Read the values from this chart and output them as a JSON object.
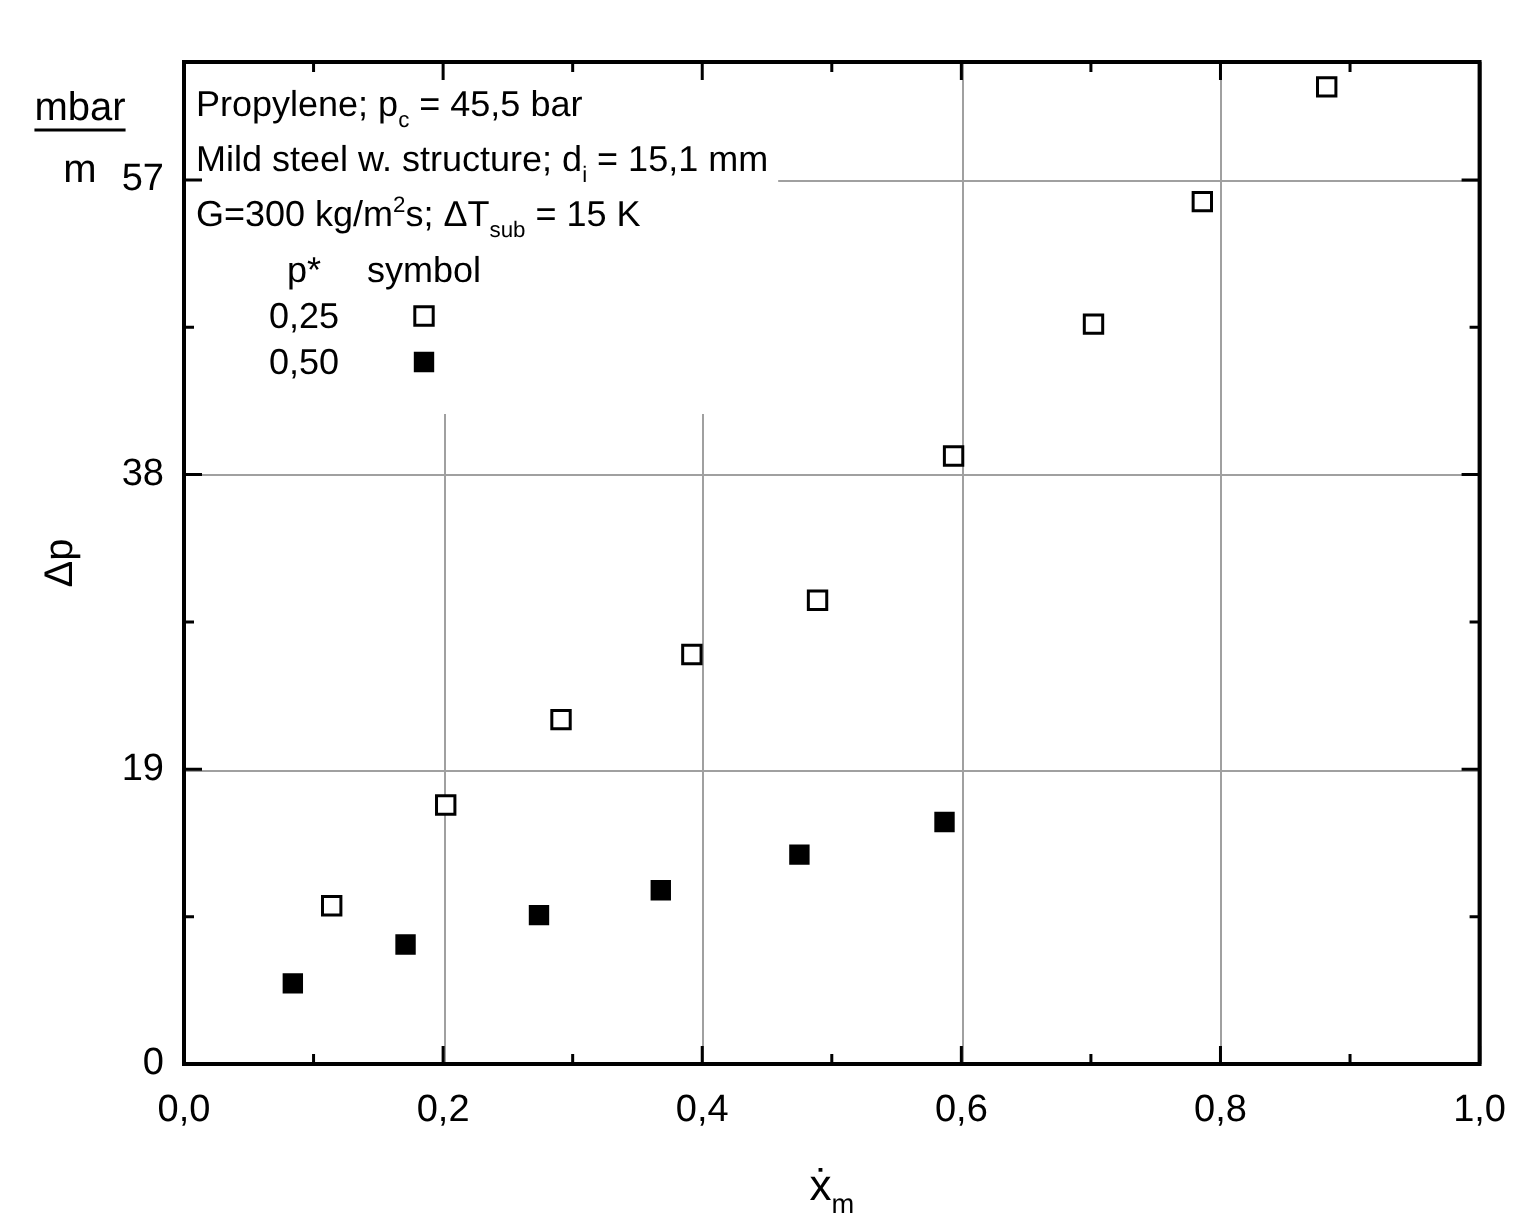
{
  "chart_data": {
    "type": "scatter",
    "xlabel": "ẋ$_{m}$",
    "ylabel": "Δp",
    "xlim": [
      0,
      1
    ],
    "ylim": [
      0,
      64.6
    ],
    "xticks": [
      {
        "value": 0,
        "label": "0,0"
      },
      {
        "value": 0.1,
        "label": null
      },
      {
        "value": 0.2,
        "label": "0,2"
      },
      {
        "value": 0.3,
        "label": null
      },
      {
        "value": 0.4,
        "label": "0,4"
      },
      {
        "value": 0.5,
        "label": null
      },
      {
        "value": 0.6,
        "label": "0,6"
      },
      {
        "value": 0.7,
        "label": null
      },
      {
        "value": 0.8,
        "label": "0,8"
      },
      {
        "value": 0.9,
        "label": null
      },
      {
        "value": 1,
        "label": "1,0"
      }
    ],
    "yticks": [
      0,
      {
        "value": 9.5,
        "label": null
      },
      19,
      {
        "value": 28.5,
        "label": null
      },
      38,
      {
        "value": 47.5,
        "label": null
      },
      57
    ],
    "grid": true,
    "legend": "top left",
    "legend_title": "p*",
    "marker": "square",
    "series": [
      {
        "name": "0,25",
        "color": "#000000",
        "marker": "square-open",
        "x": [
          0.114,
          0.202,
          0.291,
          0.392,
          0.489,
          0.594,
          0.702,
          0.786,
          0.882
        ],
        "values": [
          10.2,
          16.7,
          22.2,
          26.4,
          29.9,
          39.2,
          47.7,
          55.6,
          63.0
        ]
      },
      {
        "name": "0,50",
        "color": "#000000",
        "x": [
          0.084,
          0.171,
          0.274,
          0.368,
          0.475,
          0.587
        ],
        "values": [
          5.2,
          7.7,
          9.6,
          11.2,
          13.5,
          15.6
        ]
      }
    ],
    "annotations": [
      "Propylene; p$_{c}$ = 45,5 bar",
      "Mild steel w. structure; d$_{i}$ = 15,1 mm",
      "G=300 kg/m$^{2}$s; ΔT$_{sub}$ = 15 K",
      "symbol",
      "mbar",
      "m"
    ]
  }
}
